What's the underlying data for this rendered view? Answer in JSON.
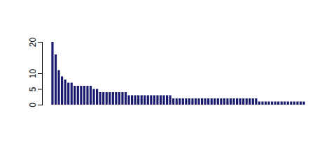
{
  "chart_data": {
    "type": "bar",
    "categories": [
      null,
      null,
      null,
      null,
      null,
      null,
      null,
      null,
      null,
      null,
      null,
      null,
      null,
      null,
      null,
      null,
      null,
      null,
      null,
      null,
      null,
      null,
      null,
      null,
      null,
      null,
      null,
      null,
      null,
      null,
      null,
      null,
      null,
      null,
      null,
      null,
      null,
      null,
      null,
      null,
      null,
      null,
      null,
      null,
      null,
      null,
      null,
      null,
      null,
      null,
      null,
      null,
      null,
      null,
      null,
      null,
      null,
      null,
      null,
      null,
      null,
      null,
      null,
      null,
      null,
      null,
      null,
      null,
      null,
      null,
      null,
      null,
      null,
      null,
      null,
      null,
      null,
      null,
      null,
      null
    ],
    "values": [
      20,
      16,
      11,
      9,
      8,
      7,
      7,
      6,
      6,
      6,
      6,
      6,
      6,
      5,
      5,
      4,
      4,
      4,
      4,
      4,
      4,
      4,
      4,
      4,
      3,
      3,
      3,
      3,
      3,
      3,
      3,
      3,
      3,
      3,
      3,
      3,
      3,
      3,
      2,
      2,
      2,
      2,
      2,
      2,
      2,
      2,
      2,
      2,
      2,
      2,
      2,
      2,
      2,
      2,
      2,
      2,
      2,
      2,
      2,
      2,
      2,
      2,
      2,
      2,
      2,
      1,
      1,
      1,
      1,
      1,
      1,
      1,
      1,
      1,
      1,
      1,
      1,
      1,
      1,
      1
    ],
    "color": "#191970",
    "ylim": [
      0,
      20
    ],
    "yticks": [
      0,
      5,
      10,
      20
    ],
    "tick_labels": "y"
  }
}
